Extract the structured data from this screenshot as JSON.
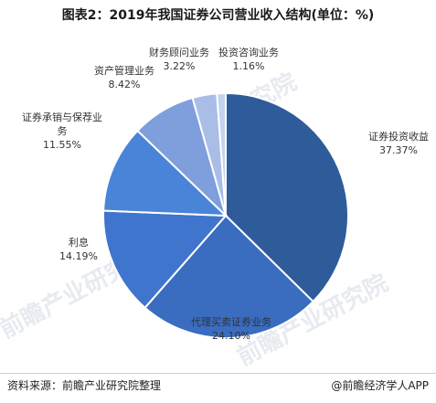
{
  "title": "图表2：2019年我国证券公司营业收入结构(单位：%)",
  "chart_data": {
    "type": "pie",
    "title": "图表2：2019年我国证券公司营业收入结构(单位：%)",
    "unit": "%",
    "slices": [
      {
        "label": "证券投资收益",
        "value": 37.37,
        "value_text": "37.37%",
        "color": "#2e5b9a"
      },
      {
        "label": "代理买卖证券业务",
        "value": 24.1,
        "value_text": "24.10%",
        "color": "#3a6cc0"
      },
      {
        "label": "利息",
        "value": 14.19,
        "value_text": "14.19%",
        "color": "#3f75cc"
      },
      {
        "label": "证券承销与保荐业务",
        "value": 11.55,
        "value_text": "11.55%",
        "color": "#4a84d8"
      },
      {
        "label": "资产管理业务",
        "value": 8.42,
        "value_text": "8.42%",
        "color": "#7f9edc"
      },
      {
        "label": "财务顾问业务",
        "value": 3.22,
        "value_text": "3.22%",
        "color": "#a9bde6"
      },
      {
        "label": "投资咨询业务",
        "value": 1.16,
        "value_text": "1.16%",
        "color": "#c5d4ee"
      }
    ]
  },
  "footer": {
    "source": "资料来源：前瞻产业研究院整理",
    "brand": "@前瞻经济学人APP"
  },
  "watermark": "前瞻产业研究院"
}
